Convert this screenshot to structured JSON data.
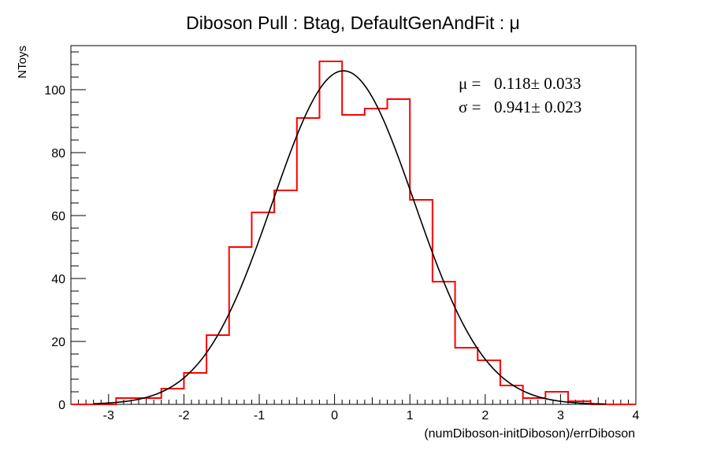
{
  "chart_data": {
    "type": "histogram",
    "title": "Diboson Pull : Btag, DefaultGenAndFit : μ",
    "xlabel": "(numDiboson-initDiboson)/errDiboson",
    "ylabel": "NToys",
    "xlim": [
      -3.5,
      4
    ],
    "ylim": [
      0,
      114
    ],
    "xticks": [
      -3,
      -2,
      -1,
      0,
      1,
      2,
      3,
      4
    ],
    "xtick_labels": [
      "-3",
      "-2",
      "-1",
      "0",
      "1",
      "2",
      "3",
      "4"
    ],
    "yticks": [
      0,
      20,
      40,
      60,
      80,
      100
    ],
    "ytick_labels": [
      "0",
      "20",
      "40",
      "60",
      "80",
      "100"
    ],
    "bin_width": 0.3,
    "bin_edges": [
      -3.5,
      -3.2,
      -2.9,
      -2.6,
      -2.3,
      -2.0,
      -1.7,
      -1.4,
      -1.1,
      -0.8,
      -0.5,
      -0.2,
      0.1,
      0.4,
      0.7,
      1.0,
      1.3,
      1.6,
      1.9,
      2.2,
      2.5,
      2.8,
      3.1,
      3.4,
      3.7,
      4.0
    ],
    "counts": [
      0,
      0,
      2,
      2,
      5,
      10,
      22,
      50,
      61,
      68,
      91,
      109,
      92,
      94,
      97,
      65,
      39,
      18,
      14,
      6,
      2,
      4,
      1,
      0,
      0
    ],
    "histogram_color": "#ff0000",
    "fit": {
      "function": "gaussian",
      "mean": 0.118,
      "sigma": 0.941,
      "amplitude": 106,
      "color": "#000000"
    },
    "stats_box": {
      "mu_label": "μ =",
      "mu_text": "0.118± 0.033",
      "sigma_label": "σ =",
      "sigma_text": "0.941± 0.023",
      "placement": "top-right"
    },
    "grid": false,
    "legend": "none"
  }
}
